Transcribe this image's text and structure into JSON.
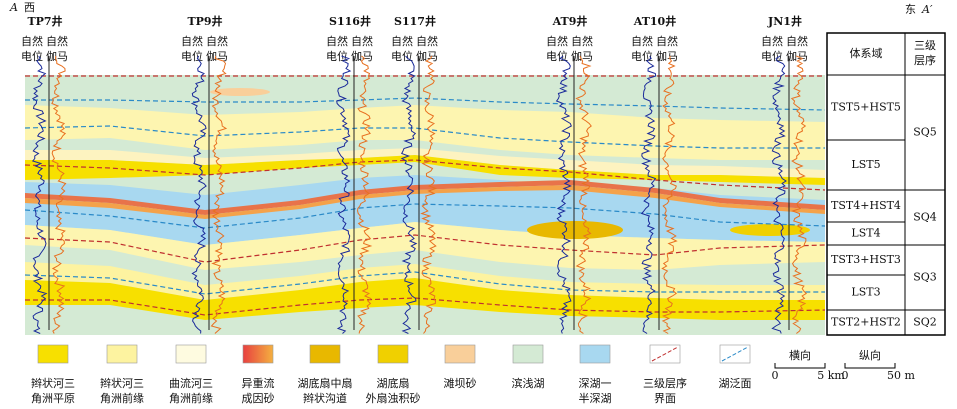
{
  "header": {
    "left_label": "A",
    "left_dir": "西",
    "right_dir": "东",
    "right_label": "A′"
  },
  "wells": [
    {
      "name": "TP7井",
      "curves": [
        [
          "自然",
          "电位"
        ],
        [
          "自然",
          "伽马"
        ]
      ]
    },
    {
      "name": "TP9井",
      "curves": [
        [
          "自然",
          "电位"
        ],
        [
          "自然",
          "伽马"
        ]
      ]
    },
    {
      "name": "S116井",
      "curves": [
        [
          "自然",
          "电位"
        ],
        [
          "自然",
          "伽马"
        ]
      ]
    },
    {
      "name": "S117井",
      "curves": [
        [
          "自然",
          "电位"
        ],
        [
          "自然",
          "伽马"
        ]
      ]
    },
    {
      "name": "AT9井",
      "curves": [
        [
          "自然",
          "电位"
        ],
        [
          "自然",
          "伽马"
        ]
      ]
    },
    {
      "name": "AT10井",
      "curves": [
        [
          "自然",
          "电位"
        ],
        [
          "自然",
          "伽马"
        ]
      ]
    },
    {
      "name": "JN1井",
      "curves": [
        [
          "自然",
          "电位"
        ],
        [
          "自然",
          "伽马"
        ]
      ]
    }
  ],
  "table": {
    "columns": [
      "体系域",
      [
        "三级",
        "层序"
      ]
    ],
    "systems_tracts": [
      "TST5+HST5",
      "LST5",
      "TST4+HST4",
      "LST4",
      "TST3+HST3",
      "LST3",
      "TST2+HST2"
    ],
    "sequences": [
      "SQ5",
      "SQ4",
      "SQ3",
      "SQ2"
    ]
  },
  "legend": [
    [
      "辫状河三",
      "角洲平原"
    ],
    [
      "辫状河三",
      "角洲前缘"
    ],
    [
      "曲流河三",
      "角洲前缘"
    ],
    [
      "异重流",
      "成因砂"
    ],
    [
      "湖底扇中扇",
      "辫状沟道"
    ],
    [
      "湖底扇",
      "外扇浊积砂"
    ],
    [
      "滩坝砂"
    ],
    [
      "滨浅湖"
    ],
    [
      "深湖一",
      "半深湖"
    ],
    [
      "三级层序",
      "界面"
    ],
    [
      "湖泛面"
    ]
  ],
  "scale": {
    "horizontal": {
      "title": "横向",
      "labels": [
        "0",
        "5 km"
      ]
    },
    "vertical": {
      "title": "纵向",
      "labels": [
        "0",
        "50 m"
      ]
    }
  }
}
